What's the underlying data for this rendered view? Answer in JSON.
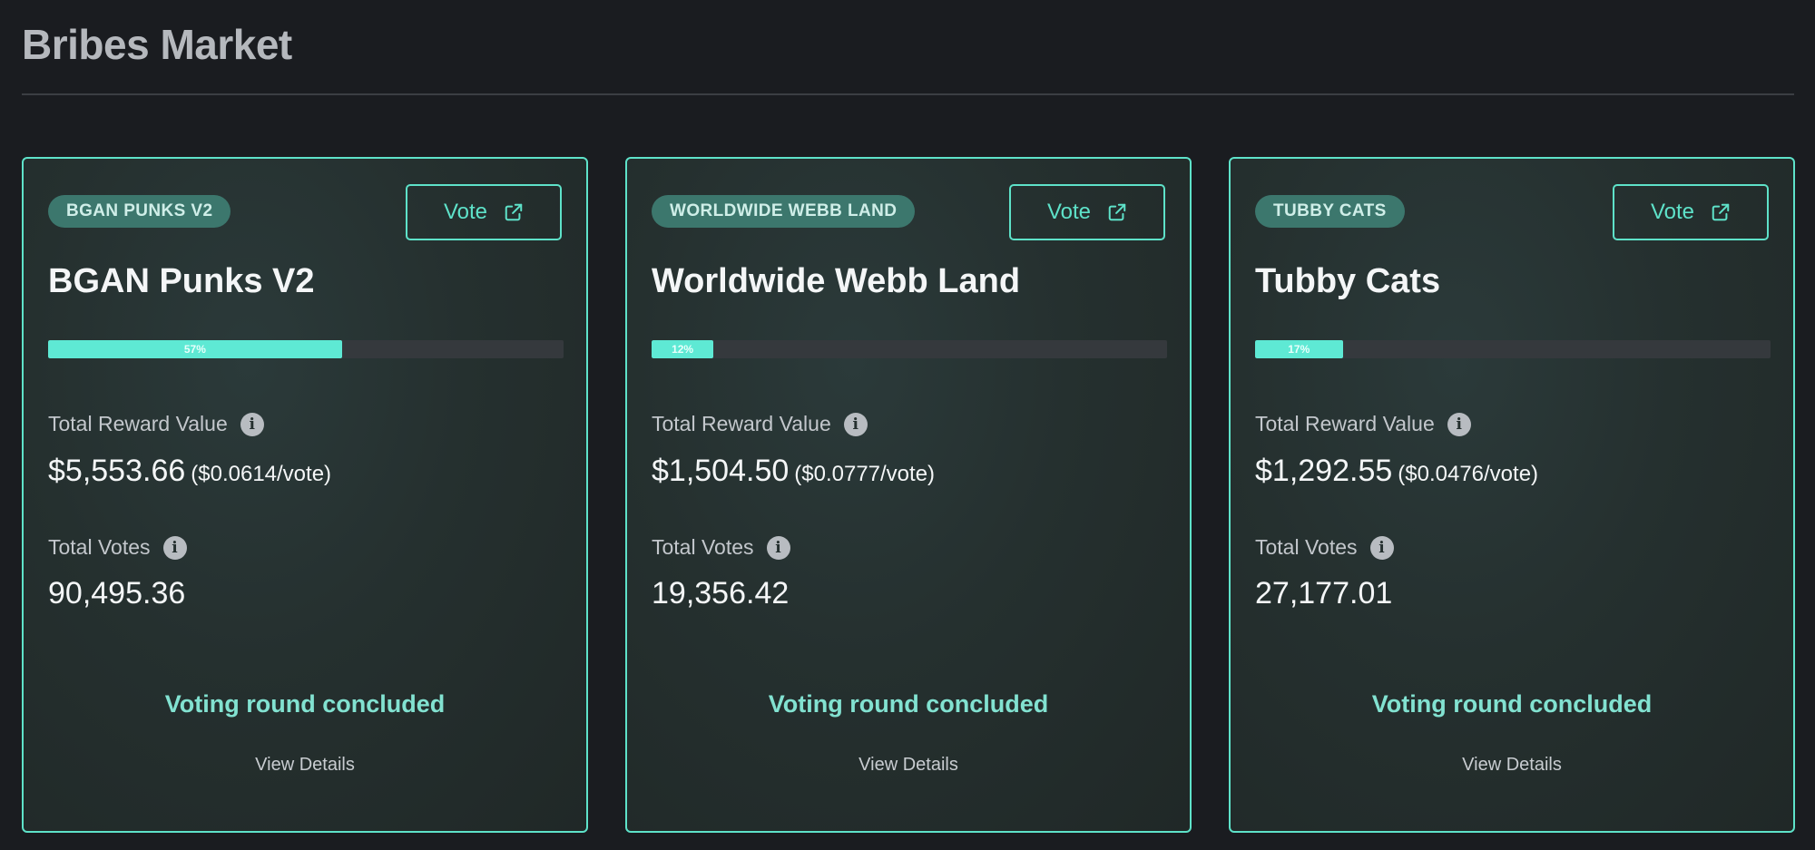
{
  "page": {
    "title": "Bribes Market"
  },
  "colors": {
    "accent": "#5ee2c9",
    "background": "#1a1c20",
    "badge": "#3c776d"
  },
  "cards": [
    {
      "badge": "BGAN PUNKS V2",
      "vote_label": "Vote",
      "title": "BGAN Punks V2",
      "progress_label": "57%",
      "progress_fraction": 0.57,
      "reward_label": "Total Reward Value",
      "reward_value": "$5,553.66",
      "reward_per_vote": "($0.0614/vote)",
      "votes_label": "Total Votes",
      "votes_value": "90,495.36",
      "status": "Voting round concluded",
      "details_label": "View Details"
    },
    {
      "badge": "WORLDWIDE WEBB LAND",
      "vote_label": "Vote",
      "title": "Worldwide Webb Land",
      "progress_label": "12%",
      "progress_fraction": 0.12,
      "reward_label": "Total Reward Value",
      "reward_value": "$1,504.50",
      "reward_per_vote": "($0.0777/vote)",
      "votes_label": "Total Votes",
      "votes_value": "19,356.42",
      "status": "Voting round concluded",
      "details_label": "View Details"
    },
    {
      "badge": "TUBBY CATS",
      "vote_label": "Vote",
      "title": "Tubby Cats",
      "progress_label": "17%",
      "progress_fraction": 0.17,
      "reward_label": "Total Reward Value",
      "reward_value": "$1,292.55",
      "reward_per_vote": "($0.0476/vote)",
      "votes_label": "Total Votes",
      "votes_value": "27,177.01",
      "status": "Voting round concluded",
      "details_label": "View Details"
    }
  ],
  "icons": {
    "vote": "external-link-icon",
    "info": "info-icon"
  }
}
